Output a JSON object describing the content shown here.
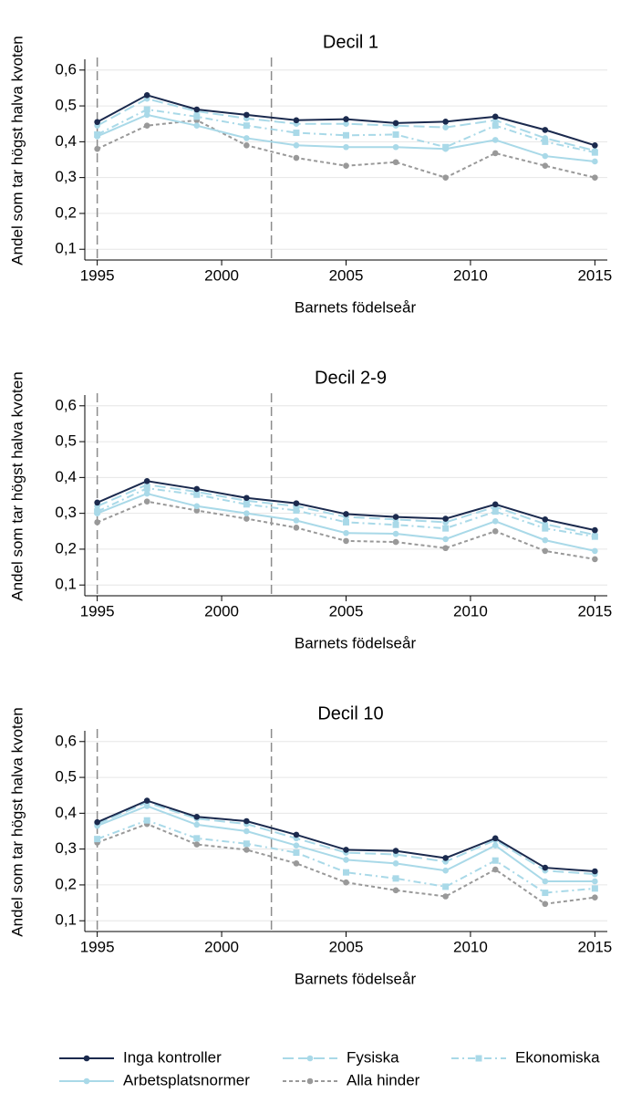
{
  "chart_data": [
    {
      "type": "line",
      "title": "Decil 1",
      "x_label": "Barnets födelseår",
      "y_label": "Andel som tar högst halva kvoten",
      "x": [
        1995,
        1997,
        1999,
        2001,
        2003,
        2005,
        2007,
        2009,
        2011,
        2013,
        2015
      ],
      "xlim": [
        1994.5,
        2015.5
      ],
      "xticks": [
        1995,
        2000,
        2005,
        2010,
        2015
      ],
      "ylim": [
        0.07,
        0.63
      ],
      "yticks": [
        {
          "value": 0.1,
          "label": "0,1"
        },
        {
          "value": 0.2,
          "label": "0,2"
        },
        {
          "value": 0.3,
          "label": "0,3"
        },
        {
          "value": 0.4,
          "label": "0,4"
        },
        {
          "value": 0.5,
          "label": "0,5"
        },
        {
          "value": 0.6,
          "label": "0,6"
        }
      ],
      "grid": true,
      "vlines": [
        1995,
        2002
      ],
      "series": [
        {
          "name": "Inga kontroller",
          "color": "#1b2a4e",
          "dash": "solid",
          "marker": "circle",
          "values": [
            0.455,
            0.53,
            0.49,
            0.475,
            0.46,
            0.463,
            0.452,
            0.456,
            0.47,
            0.433,
            0.39
          ]
        },
        {
          "name": "Fysiska",
          "color": "#a9d9e8",
          "dash": "longdash",
          "marker": "circle",
          "values": [
            0.445,
            0.52,
            0.485,
            0.465,
            0.45,
            0.45,
            0.445,
            0.44,
            0.46,
            0.41,
            0.375
          ]
        },
        {
          "name": "Ekonomiska",
          "color": "#a9d9e8",
          "dash": "dashdot",
          "marker": "square",
          "values": [
            0.42,
            0.49,
            0.47,
            0.445,
            0.425,
            0.418,
            0.42,
            0.385,
            0.445,
            0.4,
            0.37
          ]
        },
        {
          "name": "Arbetsplatsnormer",
          "color": "#a9d9e8",
          "dash": "solid",
          "marker": "circle",
          "values": [
            0.415,
            0.475,
            0.445,
            0.41,
            0.39,
            0.385,
            0.385,
            0.38,
            0.405,
            0.36,
            0.345
          ]
        },
        {
          "name": "Alla hinder",
          "color": "#999999",
          "dash": "dot",
          "marker": "circle",
          "values": [
            0.38,
            0.445,
            0.46,
            0.39,
            0.355,
            0.333,
            0.343,
            0.3,
            0.368,
            0.333,
            0.3
          ]
        }
      ]
    },
    {
      "type": "line",
      "title": "Decil 2-9",
      "x_label": "Barnets födelseår",
      "y_label": "Andel som tar högst halva kvoten",
      "x": [
        1995,
        1997,
        1999,
        2001,
        2003,
        2005,
        2007,
        2009,
        2011,
        2013,
        2015
      ],
      "xlim": [
        1994.5,
        2015.5
      ],
      "xticks": [
        1995,
        2000,
        2005,
        2010,
        2015
      ],
      "ylim": [
        0.07,
        0.63
      ],
      "yticks": [
        {
          "value": 0.1,
          "label": "0,1"
        },
        {
          "value": 0.2,
          "label": "0,2"
        },
        {
          "value": 0.3,
          "label": "0,3"
        },
        {
          "value": 0.4,
          "label": "0,4"
        },
        {
          "value": 0.5,
          "label": "0,5"
        },
        {
          "value": 0.6,
          "label": "0,6"
        }
      ],
      "grid": true,
      "vlines": [
        1995,
        2002
      ],
      "series": [
        {
          "name": "Inga kontroller",
          "color": "#1b2a4e",
          "dash": "solid",
          "marker": "circle",
          "values": [
            0.33,
            0.39,
            0.368,
            0.343,
            0.328,
            0.298,
            0.29,
            0.285,
            0.325,
            0.283,
            0.253
          ]
        },
        {
          "name": "Fysiska",
          "color": "#a9d9e8",
          "dash": "longdash",
          "marker": "circle",
          "values": [
            0.32,
            0.38,
            0.36,
            0.335,
            0.32,
            0.29,
            0.283,
            0.275,
            0.318,
            0.27,
            0.24
          ]
        },
        {
          "name": "Ekonomiska",
          "color": "#a9d9e8",
          "dash": "dashdot",
          "marker": "square",
          "values": [
            0.305,
            0.37,
            0.352,
            0.325,
            0.308,
            0.275,
            0.268,
            0.258,
            0.305,
            0.258,
            0.235
          ]
        },
        {
          "name": "Arbetsplatsnormer",
          "color": "#a9d9e8",
          "dash": "solid",
          "marker": "circle",
          "values": [
            0.3,
            0.355,
            0.32,
            0.3,
            0.28,
            0.245,
            0.243,
            0.228,
            0.278,
            0.225,
            0.195
          ]
        },
        {
          "name": "Alla hinder",
          "color": "#999999",
          "dash": "dot",
          "marker": "circle",
          "values": [
            0.275,
            0.333,
            0.308,
            0.285,
            0.26,
            0.223,
            0.22,
            0.203,
            0.25,
            0.195,
            0.172
          ]
        }
      ]
    },
    {
      "type": "line",
      "title": "Decil 10",
      "x_label": "Barnets födelseår",
      "y_label": "Andel som tar högst halva kvoten",
      "x": [
        1995,
        1997,
        1999,
        2001,
        2003,
        2005,
        2007,
        2009,
        2011,
        2013,
        2015
      ],
      "xlim": [
        1994.5,
        2015.5
      ],
      "xticks": [
        1995,
        2000,
        2005,
        2010,
        2015
      ],
      "ylim": [
        0.07,
        0.63
      ],
      "yticks": [
        {
          "value": 0.1,
          "label": "0,1"
        },
        {
          "value": 0.2,
          "label": "0,2"
        },
        {
          "value": 0.3,
          "label": "0,3"
        },
        {
          "value": 0.4,
          "label": "0,4"
        },
        {
          "value": 0.5,
          "label": "0,5"
        },
        {
          "value": 0.6,
          "label": "0,6"
        }
      ],
      "grid": true,
      "vlines": [
        1995,
        2002
      ],
      "series": [
        {
          "name": "Inga kontroller",
          "color": "#1b2a4e",
          "dash": "solid",
          "marker": "circle",
          "values": [
            0.375,
            0.435,
            0.39,
            0.378,
            0.34,
            0.298,
            0.295,
            0.275,
            0.33,
            0.248,
            0.238
          ]
        },
        {
          "name": "Fysiska",
          "color": "#a9d9e8",
          "dash": "longdash",
          "marker": "circle",
          "values": [
            0.37,
            0.43,
            0.385,
            0.37,
            0.33,
            0.29,
            0.285,
            0.265,
            0.325,
            0.24,
            0.23
          ]
        },
        {
          "name": "Ekonomiska",
          "color": "#a9d9e8",
          "dash": "dashdot",
          "marker": "square",
          "values": [
            0.328,
            0.38,
            0.33,
            0.315,
            0.29,
            0.235,
            0.218,
            0.195,
            0.268,
            0.178,
            0.19
          ]
        },
        {
          "name": "Arbetsplatsnormer",
          "color": "#a9d9e8",
          "dash": "solid",
          "marker": "circle",
          "values": [
            0.365,
            0.42,
            0.368,
            0.35,
            0.31,
            0.27,
            0.26,
            0.24,
            0.31,
            0.21,
            0.21
          ]
        },
        {
          "name": "Alla hinder",
          "color": "#999999",
          "dash": "dot",
          "marker": "circle",
          "values": [
            0.318,
            0.37,
            0.313,
            0.298,
            0.26,
            0.207,
            0.185,
            0.168,
            0.243,
            0.147,
            0.165
          ]
        }
      ]
    }
  ]
}
